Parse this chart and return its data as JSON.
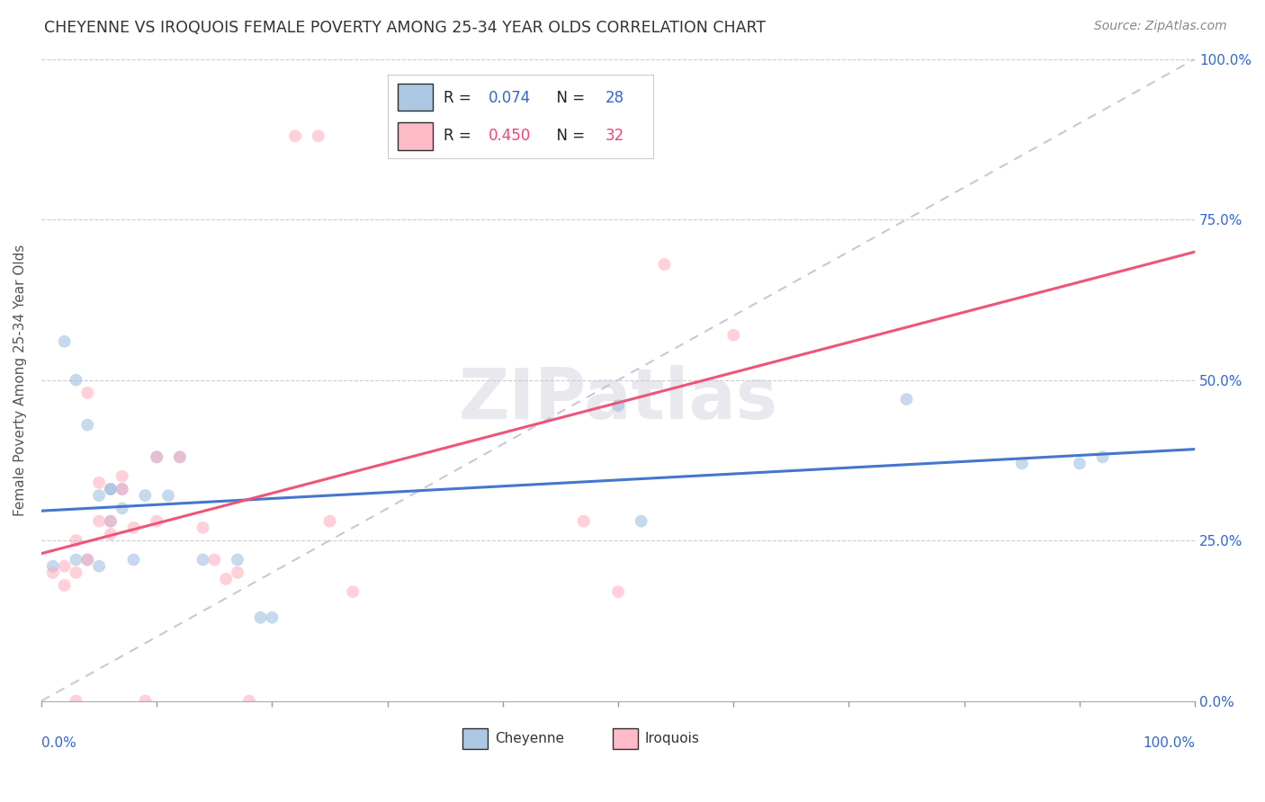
{
  "title": "CHEYENNE VS IROQUOIS FEMALE POVERTY AMONG 25-34 YEAR OLDS CORRELATION CHART",
  "source": "Source: ZipAtlas.com",
  "ylabel": "Female Poverty Among 25-34 Year Olds",
  "cheyenne_color": "#99BBDD",
  "iroquois_color": "#FFAABB",
  "cheyenne_line_color": "#4477CC",
  "iroquois_line_color": "#EE5577",
  "R_cheyenne": 0.074,
  "N_cheyenne": 28,
  "R_iroquois": 0.45,
  "N_iroquois": 32,
  "cheyenne_x": [
    0.01,
    0.02,
    0.03,
    0.03,
    0.04,
    0.04,
    0.05,
    0.05,
    0.06,
    0.06,
    0.06,
    0.07,
    0.07,
    0.08,
    0.09,
    0.1,
    0.11,
    0.12,
    0.14,
    0.17,
    0.19,
    0.2,
    0.5,
    0.52,
    0.75,
    0.85,
    0.9,
    0.92
  ],
  "cheyenne_y": [
    0.21,
    0.56,
    0.5,
    0.22,
    0.22,
    0.43,
    0.32,
    0.21,
    0.33,
    0.33,
    0.28,
    0.3,
    0.33,
    0.22,
    0.32,
    0.38,
    0.32,
    0.38,
    0.22,
    0.22,
    0.13,
    0.13,
    0.46,
    0.28,
    0.47,
    0.37,
    0.37,
    0.38
  ],
  "iroquois_x": [
    0.01,
    0.02,
    0.02,
    0.03,
    0.03,
    0.04,
    0.04,
    0.05,
    0.05,
    0.06,
    0.06,
    0.07,
    0.07,
    0.08,
    0.09,
    0.1,
    0.1,
    0.12,
    0.14,
    0.15,
    0.16,
    0.17,
    0.18,
    0.22,
    0.24,
    0.25,
    0.27,
    0.47,
    0.5,
    0.54,
    0.6,
    0.03
  ],
  "iroquois_y": [
    0.2,
    0.21,
    0.18,
    0.25,
    0.2,
    0.48,
    0.22,
    0.34,
    0.28,
    0.26,
    0.28,
    0.35,
    0.33,
    0.27,
    0.0,
    0.38,
    0.28,
    0.38,
    0.27,
    0.22,
    0.19,
    0.2,
    0.0,
    0.88,
    0.88,
    0.28,
    0.17,
    0.28,
    0.17,
    0.68,
    0.57,
    0.0
  ],
  "xlim": [
    0.0,
    1.0
  ],
  "ylim": [
    0.0,
    1.0
  ],
  "y_ticks": [
    0.0,
    0.25,
    0.5,
    0.75,
    1.0
  ],
  "x_ticks": [
    0.0,
    0.1,
    0.2,
    0.3,
    0.4,
    0.5,
    0.6,
    0.7,
    0.8,
    0.9,
    1.0
  ],
  "watermark": "ZIPatlas",
  "marker_size": 100,
  "marker_alpha": 0.55,
  "legend_label_color": "#222222",
  "legend_value_color_blue": "#3366CC",
  "legend_value_color_pink": "#EE4477"
}
